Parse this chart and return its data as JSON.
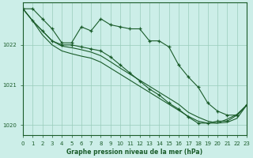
{
  "bg_color": "#cceee8",
  "grid_color": "#99ccbb",
  "line_color": "#1a5c2a",
  "title": "Graphe pression niveau de la mer (hPa)",
  "xlabel_hours": [
    0,
    1,
    2,
    3,
    4,
    5,
    6,
    7,
    8,
    9,
    10,
    11,
    12,
    13,
    14,
    15,
    16,
    17,
    18,
    19,
    20,
    21,
    22,
    23
  ],
  "ylim": [
    1019.75,
    1023.05
  ],
  "yticks": [
    1020,
    1021,
    1022
  ],
  "line1": [
    1022.9,
    1022.9,
    1022.65,
    1022.4,
    1022.05,
    1022.05,
    1022.45,
    1022.35,
    1022.65,
    1022.5,
    1022.45,
    1022.4,
    1022.4,
    1022.1,
    1022.1,
    1021.95,
    1021.5,
    1021.2,
    1020.95,
    1020.55,
    1020.35,
    1020.25,
    1020.25,
    1020.5
  ],
  "line2": [
    1022.9,
    1022.6,
    1022.35,
    1022.1,
    1022.0,
    1022.0,
    1021.95,
    1021.9,
    1021.85,
    1021.7,
    1021.5,
    1021.3,
    1021.1,
    1020.9,
    1020.75,
    1020.55,
    1020.4,
    1020.2,
    1020.05,
    1020.05,
    1020.1,
    1020.1,
    1020.25,
    1020.5
  ],
  "line3": [
    1022.9,
    1022.6,
    1022.35,
    1022.1,
    1021.97,
    1021.93,
    1021.88,
    1021.82,
    1021.73,
    1021.58,
    1021.42,
    1021.27,
    1021.12,
    1020.97,
    1020.82,
    1020.67,
    1020.52,
    1020.32,
    1020.2,
    1020.1,
    1020.05,
    1020.07,
    1020.17,
    1020.5
  ],
  "line4": [
    1022.9,
    1022.6,
    1022.25,
    1022.0,
    1021.85,
    1021.78,
    1021.72,
    1021.67,
    1021.57,
    1021.42,
    1021.27,
    1021.12,
    1020.97,
    1020.82,
    1020.67,
    1020.52,
    1020.37,
    1020.22,
    1020.1,
    1020.05,
    1020.05,
    1020.15,
    1020.27,
    1020.5
  ]
}
